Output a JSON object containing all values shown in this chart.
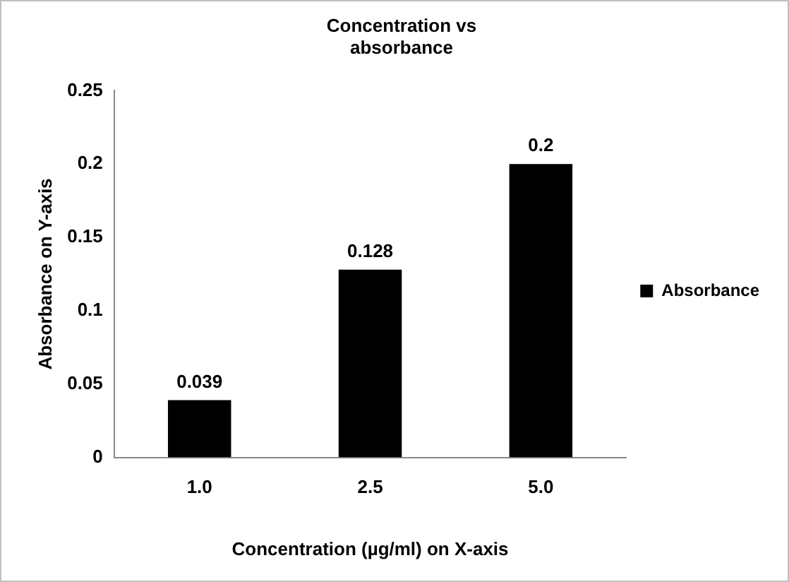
{
  "chart_data": {
    "type": "bar",
    "title": "Concentration vs\nabsorbance",
    "xlabel": "Concentration (µg/ml) on X-axis",
    "ylabel": "Absorbance on Y-axis",
    "categories": [
      "1.0",
      "2.5",
      "5.0"
    ],
    "series": [
      {
        "name": "Absorbance",
        "color": "#000000",
        "values": [
          0.039,
          0.128,
          0.2
        ]
      }
    ],
    "ylim": [
      0,
      0.25
    ],
    "yticks": [
      0,
      0.05,
      0.1,
      0.15,
      0.2,
      0.25
    ],
    "grid": false,
    "legend": "right",
    "data_labels": true
  }
}
